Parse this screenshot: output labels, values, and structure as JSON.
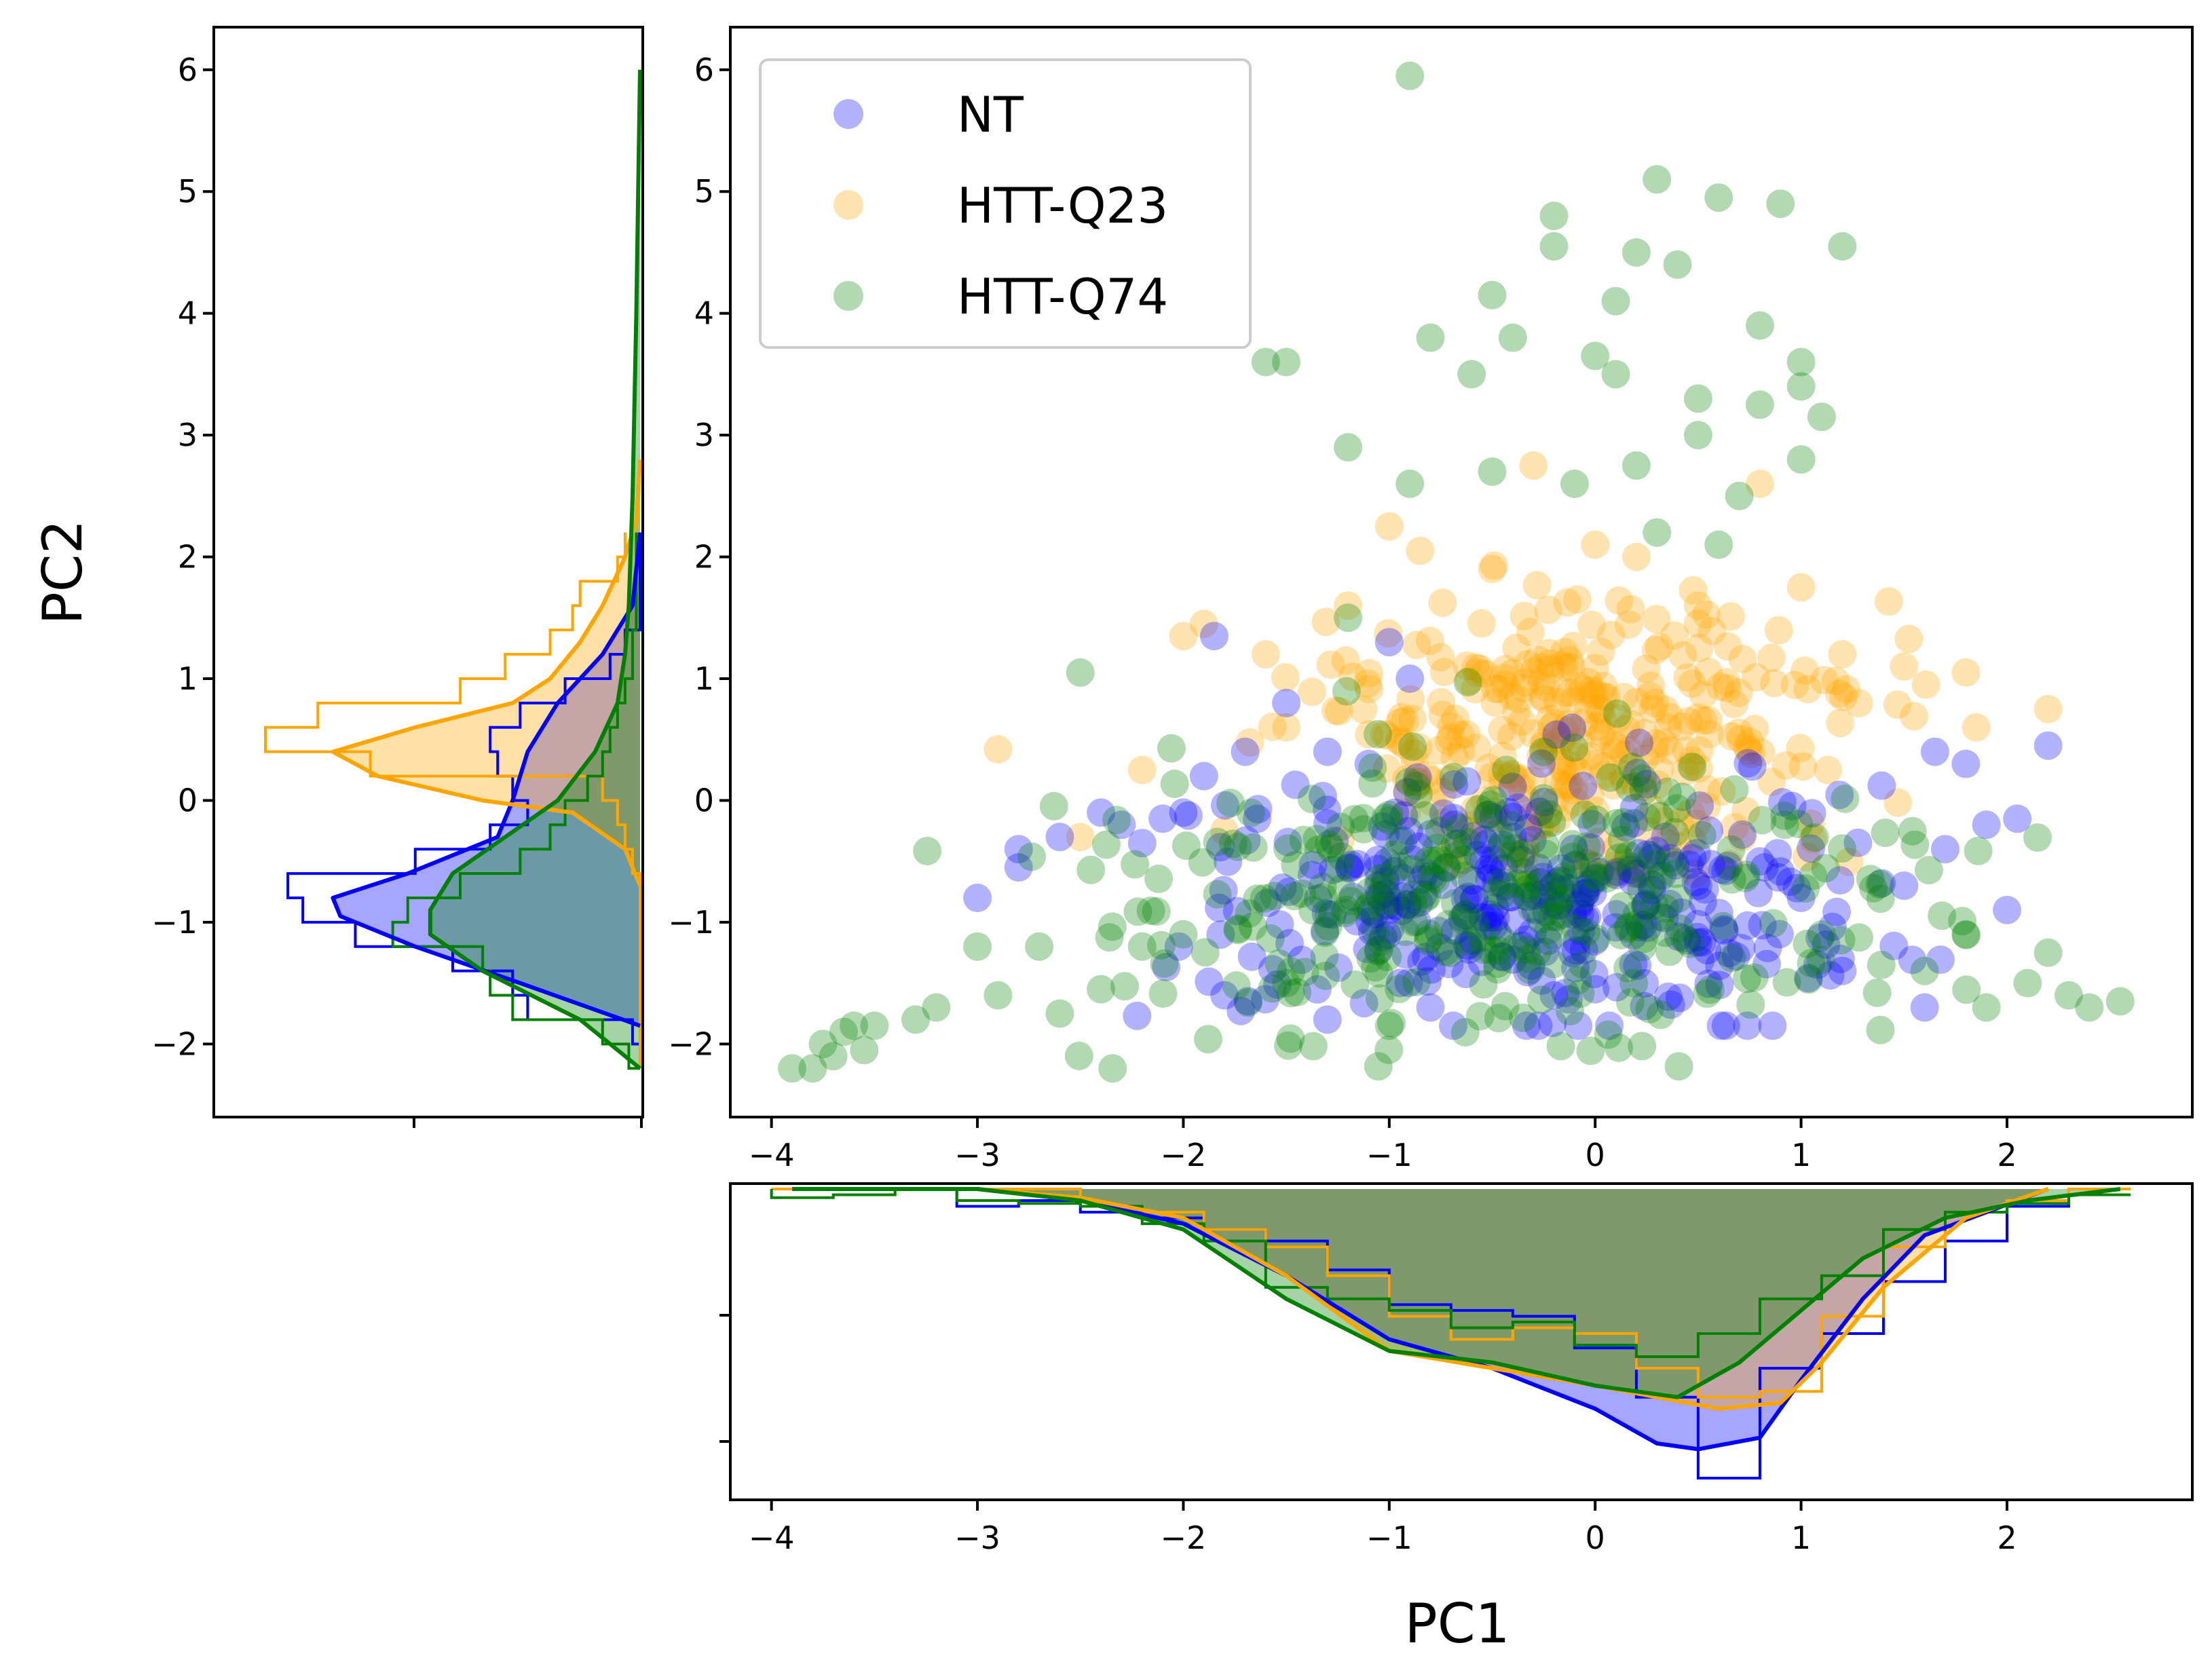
{
  "chart_data": {
    "type": "scatter",
    "title": "",
    "xlabel": "PC1",
    "ylabel": "PC2",
    "xlim": [
      -4.2,
      2.9
    ],
    "ylim": [
      -2.6,
      6.35
    ],
    "xticks": [
      -4,
      -3,
      -2,
      -1,
      0,
      1,
      2
    ],
    "yticks": [
      -2,
      -1,
      0,
      1,
      2,
      3,
      4,
      5,
      6
    ],
    "xtick_labels": [
      "−4",
      "−3",
      "−2",
      "−1",
      "0",
      "1",
      "2"
    ],
    "ytick_labels": [
      "−2",
      "−1",
      "0",
      "1",
      "2",
      "3",
      "4",
      "5",
      "6"
    ],
    "legend_position": "upper-left",
    "series": [
      {
        "name": "NT",
        "color": "#0000ff",
        "alpha": 0.3,
        "cluster": {
          "x_range": [
            -3.0,
            2.2
          ],
          "y_mean": -0.8,
          "y_sd": 0.5,
          "y_range": [
            -1.85,
            1.4
          ],
          "count": 330
        },
        "points": [
          [
            -3.0,
            -0.8
          ],
          [
            -2.8,
            -0.4
          ],
          [
            -2.8,
            -0.55
          ],
          [
            -2.6,
            -0.3
          ],
          [
            -2.4,
            -0.1
          ],
          [
            -2.3,
            -0.2
          ],
          [
            -2.1,
            -0.15
          ],
          [
            -2.2,
            -0.35
          ],
          [
            -2.0,
            -0.1
          ],
          [
            -1.9,
            0.2
          ],
          [
            -1.85,
            1.35
          ],
          [
            -1.8,
            -1.6
          ],
          [
            -1.7,
            0.4
          ],
          [
            -1.5,
            0.8
          ],
          [
            -1.3,
            0.4
          ],
          [
            -1.1,
            0.3
          ],
          [
            -1.0,
            1.3
          ],
          [
            -0.9,
            1.0
          ],
          [
            -1.3,
            -1.8
          ],
          [
            -1.0,
            -0.9
          ],
          [
            -0.8,
            -1.7
          ],
          [
            -0.4,
            -0.3
          ],
          [
            -0.2,
            -1.6
          ],
          [
            0.0,
            -1.55
          ],
          [
            0.2,
            -0.6
          ],
          [
            0.5,
            -0.7
          ],
          [
            0.8,
            -0.5
          ],
          [
            1.0,
            -0.8
          ],
          [
            1.2,
            -1.4
          ],
          [
            1.5,
            -0.7
          ],
          [
            1.6,
            -1.7
          ],
          [
            1.7,
            -0.4
          ],
          [
            1.8,
            0.3
          ],
          [
            1.9,
            -0.2
          ],
          [
            2.0,
            -0.9
          ],
          [
            2.05,
            -0.15
          ],
          [
            2.2,
            0.45
          ],
          [
            1.65,
            0.4
          ]
        ]
      },
      {
        "name": "HTT-Q23",
        "color": "#ffa500",
        "alpha": 0.3,
        "cluster": {
          "x_range": [
            -2.5,
            2.2
          ],
          "y_mean": 0.55,
          "y_sd": 0.55,
          "y_range": [
            -0.6,
            2.5
          ],
          "count": 330
        },
        "points": [
          [
            -2.9,
            0.42
          ],
          [
            -2.5,
            -0.3
          ],
          [
            -2.0,
            1.35
          ],
          [
            -1.9,
            1.45
          ],
          [
            -1.6,
            1.2
          ],
          [
            -1.2,
            1.6
          ],
          [
            -1.0,
            2.25
          ],
          [
            -0.85,
            2.05
          ],
          [
            -0.5,
            1.9
          ],
          [
            -0.3,
            2.75
          ],
          [
            0.0,
            2.1
          ],
          [
            0.2,
            2.0
          ],
          [
            0.5,
            1.6
          ],
          [
            0.8,
            2.6
          ],
          [
            1.0,
            1.75
          ],
          [
            1.2,
            1.2
          ],
          [
            1.5,
            1.1
          ],
          [
            1.8,
            1.05
          ],
          [
            1.85,
            0.6
          ],
          [
            2.2,
            0.75
          ],
          [
            -2.2,
            0.25
          ],
          [
            -1.8,
            -0.25
          ],
          [
            -1.5,
            0.6
          ]
        ]
      },
      {
        "name": "HTT-Q74",
        "color": "#008000",
        "alpha": 0.3,
        "cluster": {
          "x_range": [
            -3.9,
            2.55
          ],
          "y_mean": -0.8,
          "y_sd": 0.6,
          "y_range": [
            -2.2,
            1.0
          ],
          "count": 330
        },
        "points": [
          [
            -3.9,
            -2.2
          ],
          [
            -3.8,
            -2.2
          ],
          [
            -3.75,
            -2.0
          ],
          [
            -3.7,
            -2.1
          ],
          [
            -3.65,
            -1.9
          ],
          [
            -3.6,
            -1.85
          ],
          [
            -3.55,
            -2.05
          ],
          [
            -3.5,
            -1.85
          ],
          [
            -3.3,
            -1.8
          ],
          [
            -3.2,
            -1.7
          ],
          [
            -3.0,
            -1.2
          ],
          [
            -2.9,
            -1.6
          ],
          [
            -2.7,
            -1.2
          ],
          [
            -2.6,
            -1.75
          ],
          [
            -2.5,
            1.05
          ],
          [
            -2.4,
            -1.55
          ],
          [
            -2.2,
            -1.2
          ],
          [
            -2.0,
            -1.1
          ],
          [
            -1.6,
            3.6
          ],
          [
            -1.5,
            3.6
          ],
          [
            -1.2,
            2.9
          ],
          [
            -0.9,
            5.95
          ],
          [
            -0.8,
            3.8
          ],
          [
            -0.6,
            3.5
          ],
          [
            -0.5,
            4.15
          ],
          [
            -0.4,
            3.8
          ],
          [
            -0.2,
            4.8
          ],
          [
            -0.2,
            4.55
          ],
          [
            0.0,
            3.65
          ],
          [
            0.1,
            4.1
          ],
          [
            0.1,
            3.5
          ],
          [
            0.2,
            4.5
          ],
          [
            0.3,
            5.1
          ],
          [
            0.4,
            4.4
          ],
          [
            0.5,
            3.3
          ],
          [
            0.6,
            4.95
          ],
          [
            0.7,
            2.5
          ],
          [
            0.8,
            3.25
          ],
          [
            0.8,
            3.9
          ],
          [
            0.9,
            4.9
          ],
          [
            1.0,
            3.4
          ],
          [
            1.0,
            3.6
          ],
          [
            1.1,
            3.15
          ],
          [
            1.2,
            4.55
          ],
          [
            1.0,
            2.8
          ],
          [
            0.5,
            3.0
          ],
          [
            0.2,
            2.75
          ],
          [
            -0.1,
            2.6
          ],
          [
            -0.5,
            2.7
          ],
          [
            -0.9,
            2.6
          ],
          [
            0.3,
            2.2
          ],
          [
            0.6,
            2.1
          ],
          [
            -1.2,
            1.5
          ],
          [
            1.6,
            -1.4
          ],
          [
            1.9,
            -1.7
          ],
          [
            2.1,
            -1.5
          ],
          [
            2.3,
            -1.6
          ],
          [
            2.4,
            -1.7
          ],
          [
            2.55,
            -1.65
          ],
          [
            2.2,
            -1.25
          ],
          [
            1.8,
            -1.1
          ],
          [
            -1.0,
            -1.85
          ],
          [
            -1.5,
            -1.5
          ]
        ]
      }
    ],
    "marginal_x": {
      "orientation": "vertical-inverted",
      "bins": [
        -4.0,
        -3.7,
        -3.4,
        -3.1,
        -2.8,
        -2.5,
        -2.2,
        -1.9,
        -1.6,
        -1.3,
        -1.0,
        -0.7,
        -0.4,
        -0.1,
        0.2,
        0.5,
        0.8,
        1.1,
        1.4,
        1.7,
        2.0,
        2.3,
        2.6
      ],
      "hist": {
        "NT": [
          0.0,
          0.0,
          0.0,
          0.06,
          0.04,
          0.08,
          0.1,
          0.14,
          0.18,
          0.28,
          0.4,
          0.42,
          0.44,
          0.55,
          0.72,
          1.0,
          0.62,
          0.5,
          0.32,
          0.18,
          0.06,
          0.0
        ],
        "HTT-Q23": [
          0.0,
          0.0,
          0.0,
          0.0,
          0.0,
          0.06,
          0.08,
          0.14,
          0.2,
          0.3,
          0.44,
          0.52,
          0.48,
          0.5,
          0.62,
          0.72,
          0.7,
          0.44,
          0.2,
          0.08,
          0.04,
          0.0
        ],
        "HTT-Q74": [
          0.03,
          0.02,
          0.0,
          0.04,
          0.05,
          0.06,
          0.12,
          0.18,
          0.34,
          0.38,
          0.42,
          0.48,
          0.46,
          0.54,
          0.58,
          0.5,
          0.38,
          0.3,
          0.14,
          0.08,
          0.05,
          0.02
        ]
      },
      "kde": {
        "NT": {
          "x": [
            -3.0,
            -2.5,
            -2.0,
            -1.5,
            -1.0,
            -0.5,
            0.0,
            0.3,
            0.5,
            0.8,
            1.0,
            1.3,
            1.6,
            2.2
          ],
          "y": [
            0.0,
            0.04,
            0.12,
            0.3,
            0.52,
            0.62,
            0.76,
            0.88,
            0.9,
            0.86,
            0.66,
            0.38,
            0.16,
            0.0
          ]
        },
        "HTT-Q23": {
          "x": [
            -3.0,
            -2.5,
            -2.0,
            -1.5,
            -1.0,
            -0.5,
            0.0,
            0.3,
            0.6,
            0.9,
            1.1,
            1.4,
            1.8,
            2.2
          ],
          "y": [
            0.0,
            0.03,
            0.1,
            0.3,
            0.56,
            0.62,
            0.68,
            0.72,
            0.76,
            0.74,
            0.6,
            0.34,
            0.1,
            0.0
          ]
        },
        "HTT-Q74": {
          "x": [
            -3.9,
            -3.0,
            -2.5,
            -2.0,
            -1.5,
            -1.0,
            -0.5,
            0.0,
            0.4,
            0.7,
            1.0,
            1.3,
            1.7,
            2.1,
            2.55
          ],
          "y": [
            0.0,
            0.0,
            0.04,
            0.14,
            0.38,
            0.56,
            0.6,
            0.68,
            0.72,
            0.6,
            0.42,
            0.24,
            0.1,
            0.04,
            0.0
          ]
        }
      }
    },
    "marginal_y": {
      "orientation": "horizontal-inverted",
      "bins": [
        -2.2,
        -2.0,
        -1.8,
        -1.6,
        -1.4,
        -1.2,
        -1.0,
        -0.8,
        -0.6,
        -0.4,
        -0.2,
        0.0,
        0.2,
        0.4,
        0.6,
        0.8,
        1.0,
        1.2,
        1.4,
        1.6,
        1.8,
        2.0,
        2.2
      ],
      "hist": {
        "NT": [
          0.0,
          0.02,
          0.3,
          0.34,
          0.5,
          0.76,
          0.9,
          0.94,
          0.6,
          0.4,
          0.3,
          0.34,
          0.38,
          0.4,
          0.32,
          0.2,
          0.08,
          0.04,
          0.0,
          0.0,
          0.0,
          0.0
        ],
        "HTT-Q23": [
          0.0,
          0.0,
          0.0,
          0.0,
          0.0,
          0.0,
          0.0,
          0.0,
          0.02,
          0.04,
          0.06,
          0.1,
          0.72,
          1.0,
          0.86,
          0.48,
          0.36,
          0.24,
          0.18,
          0.16,
          0.06,
          0.04
        ],
        "HTT-Q74": [
          0.03,
          0.1,
          0.34,
          0.4,
          0.42,
          0.66,
          0.62,
          0.48,
          0.32,
          0.24,
          0.2,
          0.14,
          0.1,
          0.08,
          0.06,
          0.04,
          0.02,
          0.02,
          0.01,
          0.01,
          0.01,
          0.01
        ]
      },
      "kde": {
        "NT": {
          "y": [
            -1.85,
            -1.5,
            -1.2,
            -0.95,
            -0.8,
            -0.6,
            -0.3,
            0.0,
            0.4,
            0.8,
            1.2,
            1.6,
            2.2
          ],
          "x": [
            0.0,
            0.32,
            0.6,
            0.8,
            0.82,
            0.62,
            0.38,
            0.34,
            0.3,
            0.22,
            0.1,
            0.02,
            0.0
          ]
        },
        "HTT-Q23": {
          "y": [
            -0.7,
            -0.4,
            -0.1,
            0.0,
            0.2,
            0.4,
            0.6,
            0.8,
            1.0,
            1.3,
            1.6,
            2.0,
            2.3,
            2.8
          ],
          "x": [
            0.0,
            0.04,
            0.18,
            0.42,
            0.7,
            0.82,
            0.6,
            0.34,
            0.24,
            0.16,
            0.1,
            0.04,
            0.01,
            0.0
          ]
        },
        "HTT-Q74": {
          "y": [
            -2.2,
            -1.8,
            -1.4,
            -1.1,
            -0.9,
            -0.6,
            -0.3,
            0.0,
            0.4,
            0.8,
            1.2,
            1.6,
            2.5,
            4.0,
            6.0
          ],
          "x": [
            0.0,
            0.16,
            0.42,
            0.56,
            0.56,
            0.5,
            0.36,
            0.22,
            0.12,
            0.06,
            0.04,
            0.03,
            0.02,
            0.01,
            0.0
          ]
        }
      }
    }
  }
}
